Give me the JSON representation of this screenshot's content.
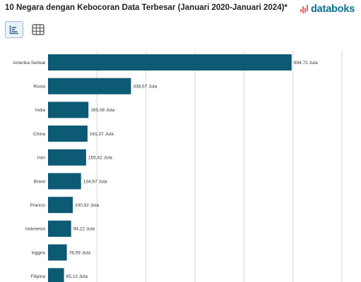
{
  "header": {
    "title": "10 Negara dengan Kebocoran Data Terbesar (Januari 2020-Januari 2024)*",
    "brand": "databoks"
  },
  "toolbar": {
    "chart_view_icon": "bar-chart-icon",
    "table_view_icon": "table-grid-icon"
  },
  "colors": {
    "bar": "#0c5a74",
    "brand": "#0d6e8a",
    "brand_icon": "#e8645a"
  },
  "chart_data": {
    "type": "bar",
    "orientation": "horizontal",
    "title": "10 Negara dengan Kebocoran Data Terbesar (Januari 2020-Januari 2024)*",
    "categories": [
      "Amerika Serikat",
      "Rusia",
      "India",
      "China",
      "Iran",
      "Brasil",
      "Prancis",
      "Indonesia",
      "Inggris",
      "Filipina"
    ],
    "values": [
      994.72,
      338.57,
      165.08,
      161.37,
      155.42,
      134.67,
      100.92,
      94.22,
      76.59,
      65.13
    ],
    "value_labels": [
      "994,72 Juta",
      "338,57 Juta",
      "165,08 Juta",
      "161,37 Juta",
      "155,42 Juta",
      "134,67 Juta",
      "100,92 Juta",
      "94,22 Juta",
      "76,59 Juta",
      "65,13 Juta"
    ],
    "unit": "Juta",
    "xlim": [
      0,
      1200
    ],
    "grid": true
  }
}
